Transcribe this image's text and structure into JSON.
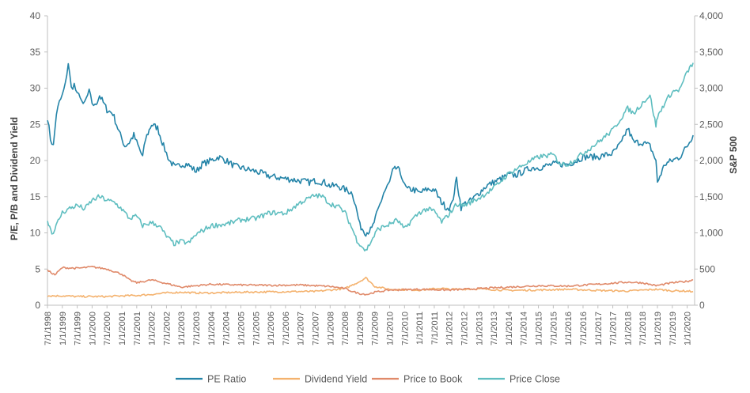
{
  "chart_data": {
    "type": "line",
    "left_axis": {
      "label": "P/E, P/B and Dividend Yield",
      "ticks": [
        "0",
        "5",
        "10",
        "15",
        "20",
        "25",
        "30",
        "35",
        "40"
      ],
      "range": [
        0,
        40
      ]
    },
    "right_axis": {
      "label": "S&P 500",
      "ticks": [
        "0",
        "500",
        "1,000",
        "1,500",
        "2,000",
        "2,500",
        "3,000",
        "3,500",
        "4,000"
      ],
      "range": [
        0,
        4000
      ]
    },
    "x_axis": {
      "ticks": [
        "7/1/1998",
        "1/1/1999",
        "7/1/1999",
        "1/1/2000",
        "7/1/2000",
        "1/1/2001",
        "7/1/2001",
        "1/1/2002",
        "7/1/2002",
        "1/1/2003",
        "7/1/2003",
        "1/1/2004",
        "7/1/2004",
        "1/1/2005",
        "7/1/2005",
        "1/1/2006",
        "7/1/2006",
        "1/1/2007",
        "7/1/2007",
        "1/1/2008",
        "7/1/2008",
        "1/1/2009",
        "7/1/2009",
        "1/1/2010",
        "7/1/2010",
        "1/1/2011",
        "7/1/2011",
        "1/1/2012",
        "7/1/2012",
        "1/1/2013",
        "7/1/2013",
        "1/1/2014",
        "7/1/2014",
        "1/1/2015",
        "7/1/2015",
        "1/1/2016",
        "7/1/2016",
        "1/1/2017",
        "7/1/2017",
        "1/1/2018",
        "7/1/2018",
        "1/1/2019",
        "7/1/2019",
        "1/1/2020"
      ],
      "range": [
        1998.5,
        2020.25
      ]
    },
    "legend_position": "bottom",
    "grid": false,
    "series": [
      {
        "name": "PE Ratio",
        "axis": "left",
        "color": "#2484A8",
        "x": [
          1998.5,
          1998.6,
          1998.7,
          1998.8,
          1998.9,
          1999.0,
          1999.1,
          1999.2,
          1999.3,
          1999.4,
          1999.5,
          1999.6,
          1999.7,
          1999.8,
          1999.9,
          2000.0,
          2000.1,
          2000.25,
          2000.5,
          2000.7,
          2000.9,
          2001.0,
          2001.1,
          2001.25,
          2001.4,
          2001.5,
          2001.7,
          2001.8,
          2002.0,
          2002.2,
          2002.4,
          2002.5,
          2002.6,
          2002.8,
          2003.0,
          2003.2,
          2003.5,
          2003.7,
          2004.0,
          2004.25,
          2004.5,
          2004.8,
          2005.0,
          2005.5,
          2006.0,
          2006.5,
          2007.0,
          2007.3,
          2007.5,
          2007.8,
          2008.0,
          2008.25,
          2008.5,
          2008.75,
          2008.9,
          2009.0,
          2009.2,
          2009.4,
          2009.6,
          2009.8,
          2010.0,
          2010.1,
          2010.25,
          2010.4,
          2010.5,
          2010.6,
          2010.8,
          2011.0,
          2011.25,
          2011.5,
          2011.7,
          2011.9,
          2012.0,
          2012.1,
          2012.25,
          2012.4,
          2012.5,
          2012.75,
          2013.0,
          2013.25,
          2013.5,
          2013.75,
          2014.0,
          2014.25,
          2014.5,
          2014.75,
          2015.0,
          2015.5,
          2016.0,
          2016.3,
          2016.5,
          2017.0,
          2017.5,
          2017.8,
          2018.0,
          2018.2,
          2018.5,
          2018.75,
          2018.95,
          2019.0,
          2019.25,
          2019.5,
          2019.75,
          2020.0,
          2020.2
        ],
        "y": [
          26,
          23,
          22,
          26.5,
          28,
          29,
          30.5,
          33.5,
          30,
          30.5,
          29,
          29,
          27.5,
          28.5,
          29.5,
          28,
          27.5,
          29,
          27,
          26.5,
          24,
          23,
          22,
          22.5,
          23.5,
          22.5,
          20.5,
          23,
          25,
          24.5,
          22,
          21,
          20,
          19,
          19.5,
          19.5,
          18.5,
          19.5,
          20,
          20.5,
          20,
          19.2,
          19,
          18.5,
          17.8,
          17.5,
          17.2,
          17,
          17.2,
          17,
          16.5,
          16.5,
          16,
          15.5,
          13,
          11,
          10,
          10.5,
          13,
          15.5,
          17,
          18.5,
          19,
          18,
          16.5,
          16,
          16,
          15.5,
          16,
          16,
          14.5,
          13.5,
          13.5,
          14,
          17.5,
          13.5,
          14,
          14.5,
          15.5,
          16.5,
          17,
          17.5,
          18,
          18,
          18.5,
          19,
          19,
          19.5,
          19.5,
          20,
          20.5,
          20.5,
          21,
          22.5,
          24.5,
          22.5,
          22.5,
          22,
          20,
          17,
          19.5,
          20,
          20.5,
          22,
          23.5
        ]
      },
      {
        "name": "Dividend Yield",
        "axis": "left",
        "color": "#F4B26E",
        "x": [
          1998.5,
          1999.0,
          1999.5,
          2000.0,
          2000.5,
          2001.0,
          2001.5,
          2002.0,
          2002.5,
          2003.0,
          2003.5,
          2004.0,
          2005.0,
          2006.0,
          2007.0,
          2007.5,
          2008.0,
          2008.5,
          2008.75,
          2009.0,
          2009.2,
          2009.5,
          2010.0,
          2011.0,
          2011.75,
          2012.0,
          2013.0,
          2014.0,
          2015.0,
          2016.0,
          2017.0,
          2018.0,
          2018.95,
          2019.5,
          2020.0,
          2020.2
        ],
        "y": [
          1.3,
          1.3,
          1.2,
          1.2,
          1.2,
          1.3,
          1.35,
          1.5,
          1.7,
          1.8,
          1.7,
          1.7,
          1.8,
          1.85,
          1.9,
          1.9,
          2.1,
          2.3,
          2.8,
          3.3,
          3.8,
          2.6,
          2.2,
          2.1,
          2.35,
          2.2,
          2.25,
          2.05,
          2.1,
          2.2,
          2.05,
          1.95,
          2.2,
          2.0,
          1.95,
          1.9
        ]
      },
      {
        "name": "Price to Book",
        "axis": "left",
        "color": "#E08A6A",
        "x": [
          1998.5,
          1998.75,
          1999.0,
          1999.5,
          2000.0,
          2000.5,
          2001.0,
          2001.25,
          2001.5,
          2002.0,
          2002.5,
          2003.0,
          2003.5,
          2004.0,
          2005.0,
          2006.0,
          2007.0,
          2008.0,
          2008.5,
          2008.75,
          2009.0,
          2009.25,
          2009.5,
          2010.0,
          2011.0,
          2012.0,
          2013.0,
          2014.0,
          2015.0,
          2016.0,
          2017.0,
          2018.0,
          2018.5,
          2018.95,
          2019.5,
          2020.0,
          2020.2
        ],
        "y": [
          4.8,
          4.2,
          5.2,
          5.1,
          5.3,
          5.0,
          4.3,
          3.5,
          3.1,
          3.5,
          3.0,
          2.5,
          2.7,
          2.9,
          2.8,
          2.75,
          2.8,
          2.6,
          2.3,
          1.9,
          1.6,
          1.5,
          1.8,
          2.1,
          2.2,
          2.1,
          2.3,
          2.5,
          2.7,
          2.65,
          2.9,
          3.2,
          3.1,
          2.7,
          3.1,
          3.3,
          3.5
        ]
      },
      {
        "name": "Price Close",
        "axis": "right",
        "color": "#5FBEC0",
        "x": [
          1998.5,
          1998.65,
          1998.75,
          1998.9,
          1999.0,
          1999.25,
          1999.5,
          1999.75,
          2000.0,
          2000.25,
          2000.5,
          2000.75,
          2001.0,
          2001.25,
          2001.5,
          2001.7,
          2001.9,
          2002.0,
          2002.25,
          2002.5,
          2002.75,
          2003.0,
          2003.25,
          2003.5,
          2004.0,
          2004.5,
          2005.0,
          2005.5,
          2006.0,
          2006.5,
          2007.0,
          2007.5,
          2007.75,
          2008.0,
          2008.25,
          2008.5,
          2008.75,
          2008.9,
          2009.0,
          2009.2,
          2009.4,
          2009.6,
          2010.0,
          2010.25,
          2010.5,
          2010.75,
          2011.0,
          2011.25,
          2011.5,
          2011.75,
          2012.0,
          2012.25,
          2012.5,
          2013.0,
          2013.5,
          2014.0,
          2014.5,
          2015.0,
          2015.5,
          2015.75,
          2016.0,
          2016.5,
          2017.0,
          2017.5,
          2018.0,
          2018.2,
          2018.5,
          2018.75,
          2018.95,
          2019.0,
          2019.25,
          2019.5,
          2019.75,
          2020.0,
          2020.2
        ],
        "y": [
          1180,
          1000,
          1050,
          1200,
          1280,
          1340,
          1380,
          1330,
          1450,
          1500,
          1450,
          1420,
          1330,
          1200,
          1230,
          1100,
          1130,
          1140,
          1100,
          950,
          850,
          880,
          860,
          980,
          1100,
          1120,
          1180,
          1200,
          1280,
          1270,
          1420,
          1520,
          1500,
          1400,
          1370,
          1280,
          1050,
          900,
          850,
          750,
          900,
          1050,
          1120,
          1180,
          1050,
          1180,
          1280,
          1330,
          1300,
          1150,
          1260,
          1400,
          1380,
          1480,
          1620,
          1820,
          1940,
          2050,
          2080,
          1950,
          1950,
          2100,
          2250,
          2420,
          2720,
          2650,
          2800,
          2900,
          2480,
          2600,
          2800,
          2950,
          2980,
          3220,
          3350
        ]
      }
    ]
  }
}
